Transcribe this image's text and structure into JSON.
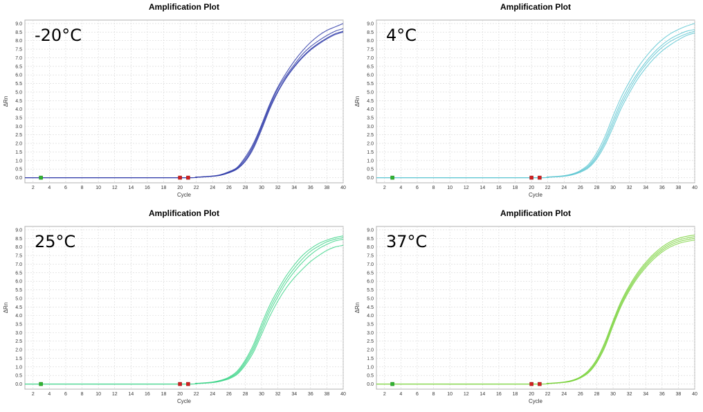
{
  "chart_data": [
    {
      "type": "line",
      "title": "Amplification Plot",
      "annotation": "-20°C",
      "xlabel": "Cycle",
      "ylabel": "ΔRn",
      "xlim": [
        1,
        40
      ],
      "ylim": [
        -0.3,
        9.2
      ],
      "x_ticks": [
        2,
        4,
        6,
        8,
        10,
        12,
        14,
        16,
        18,
        20,
        22,
        24,
        26,
        28,
        30,
        32,
        34,
        36,
        38,
        40
      ],
      "y_ticks": [
        0.0,
        0.5,
        1.0,
        1.5,
        2.0,
        2.5,
        3.0,
        3.5,
        4.0,
        4.5,
        5.0,
        5.5,
        6.0,
        6.5,
        7.0,
        7.5,
        8.0,
        8.5,
        9.0
      ],
      "grid": true,
      "color": "#2e3aa8",
      "series": [
        {
          "x": [
            1,
            20,
            22,
            24,
            25,
            26,
            27,
            28,
            29,
            30,
            31,
            32,
            33,
            34,
            35,
            36,
            37,
            38,
            39,
            40
          ],
          "values": [
            0.0,
            0.0,
            0.03,
            0.1,
            0.18,
            0.35,
            0.6,
            1.2,
            2.0,
            3.1,
            4.3,
            5.3,
            6.1,
            6.8,
            7.4,
            7.9,
            8.3,
            8.6,
            8.8,
            9.0
          ]
        },
        {
          "x": [
            1,
            20,
            22,
            24,
            25,
            26,
            27,
            28,
            29,
            30,
            31,
            32,
            33,
            34,
            35,
            36,
            37,
            38,
            39,
            40
          ],
          "values": [
            0.0,
            0.0,
            0.03,
            0.09,
            0.16,
            0.32,
            0.56,
            1.1,
            1.9,
            3.0,
            4.2,
            5.2,
            5.95,
            6.6,
            7.2,
            7.65,
            8.0,
            8.3,
            8.55,
            8.7
          ]
        },
        {
          "x": [
            1,
            20,
            22,
            24,
            25,
            26,
            27,
            28,
            29,
            30,
            31,
            32,
            33,
            34,
            35,
            36,
            37,
            38,
            39,
            40
          ],
          "values": [
            0.0,
            0.0,
            0.02,
            0.08,
            0.15,
            0.3,
            0.52,
            1.0,
            1.8,
            2.9,
            4.1,
            5.05,
            5.85,
            6.5,
            7.05,
            7.5,
            7.85,
            8.15,
            8.4,
            8.55
          ]
        },
        {
          "x": [
            1,
            20,
            22,
            24,
            25,
            26,
            27,
            28,
            29,
            30,
            31,
            32,
            33,
            34,
            35,
            36,
            37,
            38,
            39,
            40
          ],
          "values": [
            0.0,
            0.0,
            0.02,
            0.08,
            0.14,
            0.28,
            0.5,
            0.95,
            1.7,
            2.8,
            4.0,
            5.0,
            5.8,
            6.45,
            7.0,
            7.45,
            7.8,
            8.1,
            8.35,
            8.5
          ]
        }
      ]
    },
    {
      "type": "line",
      "title": "Amplification Plot",
      "annotation": "4°C",
      "xlabel": "Cycle",
      "ylabel": "ΔRn",
      "xlim": [
        1,
        40
      ],
      "ylim": [
        -0.3,
        9.2
      ],
      "x_ticks": [
        2,
        4,
        6,
        8,
        10,
        12,
        14,
        16,
        18,
        20,
        22,
        24,
        26,
        28,
        30,
        32,
        34,
        36,
        38,
        40
      ],
      "y_ticks": [
        0.0,
        0.5,
        1.0,
        1.5,
        2.0,
        2.5,
        3.0,
        3.5,
        4.0,
        4.5,
        5.0,
        5.5,
        6.0,
        6.5,
        7.0,
        7.5,
        8.0,
        8.5,
        9.0
      ],
      "grid": true,
      "color": "#5ec7d2",
      "series": [
        {
          "x": [
            1,
            20,
            22,
            24,
            25,
            26,
            27,
            28,
            29,
            30,
            31,
            32,
            33,
            34,
            35,
            36,
            37,
            38,
            39,
            40
          ],
          "values": [
            0.0,
            0.0,
            0.04,
            0.12,
            0.22,
            0.42,
            0.78,
            1.45,
            2.4,
            3.6,
            4.7,
            5.6,
            6.4,
            7.05,
            7.6,
            8.05,
            8.4,
            8.65,
            8.85,
            9.0
          ]
        },
        {
          "x": [
            1,
            20,
            22,
            24,
            25,
            26,
            27,
            28,
            29,
            30,
            31,
            32,
            33,
            34,
            35,
            36,
            37,
            38,
            39,
            40
          ],
          "values": [
            0.0,
            0.0,
            0.03,
            0.1,
            0.2,
            0.38,
            0.7,
            1.3,
            2.2,
            3.35,
            4.45,
            5.35,
            6.1,
            6.75,
            7.3,
            7.75,
            8.1,
            8.35,
            8.55,
            8.65
          ]
        },
        {
          "x": [
            1,
            20,
            22,
            24,
            25,
            26,
            27,
            28,
            29,
            30,
            31,
            32,
            33,
            34,
            35,
            36,
            37,
            38,
            39,
            40
          ],
          "values": [
            0.0,
            0.0,
            0.03,
            0.09,
            0.18,
            0.35,
            0.64,
            1.2,
            2.05,
            3.15,
            4.25,
            5.15,
            5.95,
            6.6,
            7.15,
            7.6,
            7.95,
            8.2,
            8.4,
            8.55
          ]
        },
        {
          "x": [
            1,
            20,
            22,
            24,
            25,
            26,
            27,
            28,
            29,
            30,
            31,
            32,
            33,
            34,
            35,
            36,
            37,
            38,
            39,
            40
          ],
          "values": [
            0.0,
            0.0,
            0.02,
            0.08,
            0.16,
            0.32,
            0.58,
            1.1,
            1.9,
            2.95,
            4.05,
            4.95,
            5.75,
            6.4,
            6.95,
            7.4,
            7.75,
            8.05,
            8.3,
            8.45
          ]
        }
      ]
    },
    {
      "type": "line",
      "title": "Amplification Plot",
      "annotation": "25°C",
      "xlabel": "Cycle",
      "ylabel": "ΔRn",
      "xlim": [
        1,
        40
      ],
      "ylim": [
        -0.3,
        9.2
      ],
      "x_ticks": [
        2,
        4,
        6,
        8,
        10,
        12,
        14,
        16,
        18,
        20,
        22,
        24,
        26,
        28,
        30,
        32,
        34,
        36,
        38,
        40
      ],
      "y_ticks": [
        0.0,
        0.5,
        1.0,
        1.5,
        2.0,
        2.5,
        3.0,
        3.5,
        4.0,
        4.5,
        5.0,
        5.5,
        6.0,
        6.5,
        7.0,
        7.5,
        8.0,
        8.5,
        9.0
      ],
      "grid": true,
      "color": "#3ed58a",
      "series": [
        {
          "x": [
            1,
            20,
            22,
            24,
            25,
            26,
            27,
            28,
            29,
            30,
            31,
            32,
            33,
            34,
            35,
            36,
            37,
            38,
            39,
            40
          ],
          "values": [
            0.0,
            0.0,
            0.04,
            0.12,
            0.22,
            0.4,
            0.75,
            1.4,
            2.3,
            3.5,
            4.6,
            5.5,
            6.3,
            6.95,
            7.5,
            7.9,
            8.2,
            8.4,
            8.55,
            8.65
          ]
        },
        {
          "x": [
            1,
            20,
            22,
            24,
            25,
            26,
            27,
            28,
            29,
            30,
            31,
            32,
            33,
            34,
            35,
            36,
            37,
            38,
            39,
            40
          ],
          "values": [
            0.0,
            0.0,
            0.03,
            0.1,
            0.2,
            0.37,
            0.68,
            1.3,
            2.15,
            3.3,
            4.4,
            5.3,
            6.1,
            6.75,
            7.3,
            7.75,
            8.05,
            8.3,
            8.45,
            8.55
          ]
        },
        {
          "x": [
            1,
            20,
            22,
            24,
            25,
            26,
            27,
            28,
            29,
            30,
            31,
            32,
            33,
            34,
            35,
            36,
            37,
            38,
            39,
            40
          ],
          "values": [
            0.0,
            0.0,
            0.03,
            0.09,
            0.18,
            0.34,
            0.62,
            1.2,
            2.0,
            3.1,
            4.2,
            5.1,
            5.9,
            6.55,
            7.1,
            7.55,
            7.9,
            8.15,
            8.35,
            8.45
          ]
        },
        {
          "x": [
            1,
            20,
            22,
            24,
            25,
            26,
            27,
            28,
            29,
            30,
            31,
            32,
            33,
            34,
            35,
            36,
            37,
            38,
            39,
            40
          ],
          "values": [
            0.0,
            0.0,
            0.02,
            0.08,
            0.16,
            0.3,
            0.56,
            1.1,
            1.85,
            2.9,
            3.95,
            4.85,
            5.6,
            6.2,
            6.7,
            7.15,
            7.5,
            7.8,
            8.0,
            8.1
          ]
        }
      ]
    },
    {
      "type": "line",
      "title": "Amplification Plot",
      "annotation": "37°C",
      "xlabel": "Cycle",
      "ylabel": "ΔRn",
      "xlim": [
        1,
        40
      ],
      "ylim": [
        -0.3,
        9.2
      ],
      "x_ticks": [
        2,
        4,
        6,
        8,
        10,
        12,
        14,
        16,
        18,
        20,
        22,
        24,
        26,
        28,
        30,
        32,
        34,
        36,
        38,
        40
      ],
      "y_ticks": [
        0.0,
        0.5,
        1.0,
        1.5,
        2.0,
        2.5,
        3.0,
        3.5,
        4.0,
        4.5,
        5.0,
        5.5,
        6.0,
        6.5,
        7.0,
        7.5,
        8.0,
        8.5,
        9.0
      ],
      "grid": true,
      "color": "#7ad23c",
      "series": [
        {
          "x": [
            1,
            20,
            22,
            24,
            25,
            26,
            27,
            28,
            29,
            30,
            31,
            32,
            33,
            34,
            35,
            36,
            37,
            38,
            39,
            40
          ],
          "values": [
            0.0,
            0.0,
            0.04,
            0.12,
            0.22,
            0.42,
            0.8,
            1.45,
            2.45,
            3.7,
            4.85,
            5.75,
            6.5,
            7.1,
            7.6,
            8.0,
            8.3,
            8.5,
            8.62,
            8.7
          ]
        },
        {
          "x": [
            1,
            20,
            22,
            24,
            25,
            26,
            27,
            28,
            29,
            30,
            31,
            32,
            33,
            34,
            35,
            36,
            37,
            38,
            39,
            40
          ],
          "values": [
            0.0,
            0.0,
            0.03,
            0.11,
            0.2,
            0.4,
            0.75,
            1.38,
            2.35,
            3.6,
            4.75,
            5.65,
            6.4,
            7.0,
            7.5,
            7.9,
            8.2,
            8.4,
            8.52,
            8.6
          ]
        },
        {
          "x": [
            1,
            20,
            22,
            24,
            25,
            26,
            27,
            28,
            29,
            30,
            31,
            32,
            33,
            34,
            35,
            36,
            37,
            38,
            39,
            40
          ],
          "values": [
            0.0,
            0.0,
            0.03,
            0.1,
            0.19,
            0.38,
            0.7,
            1.3,
            2.25,
            3.5,
            4.65,
            5.55,
            6.3,
            6.9,
            7.4,
            7.8,
            8.1,
            8.3,
            8.42,
            8.5
          ]
        },
        {
          "x": [
            1,
            20,
            22,
            24,
            25,
            26,
            27,
            28,
            29,
            30,
            31,
            32,
            33,
            34,
            35,
            36,
            37,
            38,
            39,
            40
          ],
          "values": [
            0.0,
            0.0,
            0.02,
            0.09,
            0.17,
            0.35,
            0.66,
            1.25,
            2.15,
            3.4,
            4.55,
            5.45,
            6.2,
            6.8,
            7.3,
            7.7,
            8.0,
            8.2,
            8.32,
            8.4
          ]
        }
      ]
    }
  ]
}
